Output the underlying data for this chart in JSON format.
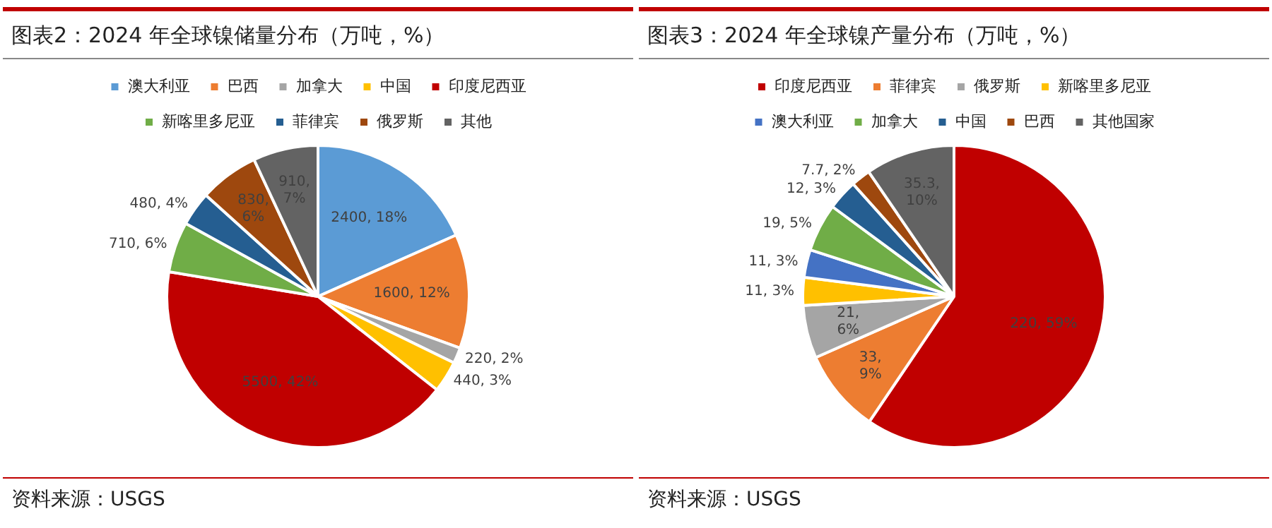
{
  "chart_data": [
    {
      "type": "pie",
      "title": "图表2：2024 年全球镍储量分布（万吨，%）",
      "categories": [
        "澳大利亚",
        "巴西",
        "加拿大",
        "中国",
        "印度尼西亚",
        "新喀里多尼亚",
        "菲律宾",
        "俄罗斯",
        "其他"
      ],
      "values": [
        2400,
        1600,
        220,
        440,
        5500,
        710,
        480,
        830,
        910
      ],
      "value_labels": [
        "2400, 18%",
        "1600, 12%",
        "220, 2%",
        "440, 3%",
        "5500, 42%",
        "710, 6%",
        "480, 4%",
        "830, 6%",
        "910, 7%"
      ],
      "colors": [
        "#5b9bd5",
        "#ed7d31",
        "#a5a5a5",
        "#ffc000",
        "#c00000",
        "#70ad47",
        "#255e91",
        "#9e480e",
        "#636363"
      ],
      "legend": "top",
      "annotations": [
        "资料来源：USGS"
      ]
    },
    {
      "type": "pie",
      "title": "图表3：2024 年全球镍产量分布（万吨，%）",
      "categories": [
        "印度尼西亚",
        "菲律宾",
        "俄罗斯",
        "新喀里多尼亚",
        "澳大利亚",
        "加拿大",
        "中国",
        "巴西",
        "其他国家"
      ],
      "values": [
        220,
        33,
        21,
        11,
        11,
        19,
        12,
        7.7,
        35.3
      ],
      "value_labels": [
        "220, 59%",
        "33, 9%",
        "21, 6%",
        "11, 3%",
        "11, 3%",
        "19, 5%",
        "12, 3%",
        "7.7, 2%",
        "35.3, 10%"
      ],
      "colors": [
        "#c00000",
        "#ed7d31",
        "#a5a5a5",
        "#ffc000",
        "#4472c4",
        "#70ad47",
        "#255e91",
        "#9e480e",
        "#636363"
      ],
      "legend": "top",
      "annotations": [
        "资料来源：USGS"
      ]
    }
  ]
}
